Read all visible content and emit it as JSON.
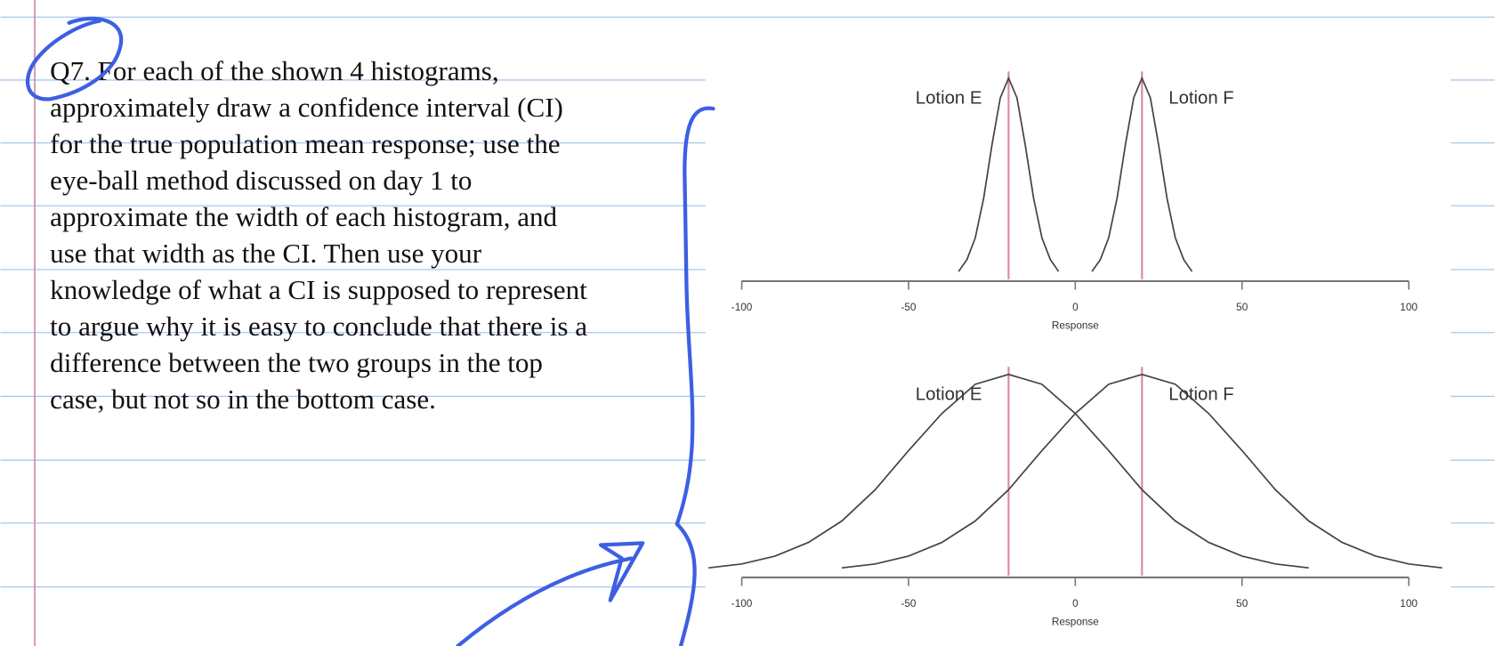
{
  "question": {
    "lines": [
      "Q7. For each of the shown 4 histograms,",
      "approximately draw a confidence interval (CI)",
      "for the true population mean response; use the",
      "eye-ball method discussed on day 1 to",
      "approximate the width of each histogram, and",
      "use that width as the CI. Then use your",
      "knowledge of what a CI is supposed to represent",
      "to argue why it is easy to conclude that there is a",
      "difference between the two groups in the top",
      "case, but not so in the bottom case."
    ]
  },
  "chart_data": [
    {
      "type": "line",
      "xlabel": "Response",
      "xlim": [
        -100,
        100
      ],
      "xticks": [
        -100,
        -50,
        0,
        50,
        100
      ],
      "vlines": [
        -20,
        20
      ],
      "vline_color": "#d98a9a",
      "series": [
        {
          "name": "Lotion E",
          "color": "#444444",
          "x": [
            -35,
            -32.5,
            -30,
            -27.5,
            -25,
            -22.5,
            -20,
            -17.5,
            -15,
            -12.5,
            -10,
            -7.5,
            -5
          ],
          "values": [
            0.02,
            0.08,
            0.19,
            0.39,
            0.66,
            0.9,
            1,
            0.9,
            0.66,
            0.39,
            0.19,
            0.08,
            0.02
          ]
        },
        {
          "name": "Lotion F",
          "color": "#444444",
          "x": [
            5,
            7.5,
            10,
            12.5,
            15,
            17.5,
            20,
            22.5,
            25,
            27.5,
            30,
            32.5,
            35
          ],
          "values": [
            0.02,
            0.08,
            0.19,
            0.39,
            0.66,
            0.9,
            1,
            0.9,
            0.66,
            0.39,
            0.19,
            0.08,
            0.02
          ]
        }
      ]
    },
    {
      "type": "line",
      "xlabel": "Response",
      "xlim": [
        -100,
        100
      ],
      "xticks": [
        -100,
        -50,
        0,
        50,
        100
      ],
      "vlines": [
        -20,
        20
      ],
      "vline_color": "#d98a9a",
      "series": [
        {
          "name": "Lotion E",
          "color": "#444444",
          "x": [
            -110,
            -100,
            -90,
            -80,
            -70,
            -60,
            -50,
            -40,
            -30,
            -20,
            -10,
            0,
            10,
            20,
            30,
            40,
            50,
            60,
            70
          ],
          "values": [
            0.01,
            0.03,
            0.07,
            0.14,
            0.25,
            0.41,
            0.61,
            0.8,
            0.95,
            1,
            0.95,
            0.8,
            0.61,
            0.41,
            0.25,
            0.14,
            0.07,
            0.03,
            0.01
          ]
        },
        {
          "name": "Lotion F",
          "color": "#444444",
          "x": [
            -70,
            -60,
            -50,
            -40,
            -30,
            -20,
            -10,
            0,
            10,
            20,
            30,
            40,
            50,
            60,
            70,
            80,
            90,
            100,
            110
          ],
          "values": [
            0.01,
            0.03,
            0.07,
            0.14,
            0.25,
            0.41,
            0.61,
            0.8,
            0.95,
            1,
            0.95,
            0.8,
            0.61,
            0.41,
            0.25,
            0.14,
            0.07,
            0.03,
            0.01
          ]
        }
      ]
    }
  ]
}
